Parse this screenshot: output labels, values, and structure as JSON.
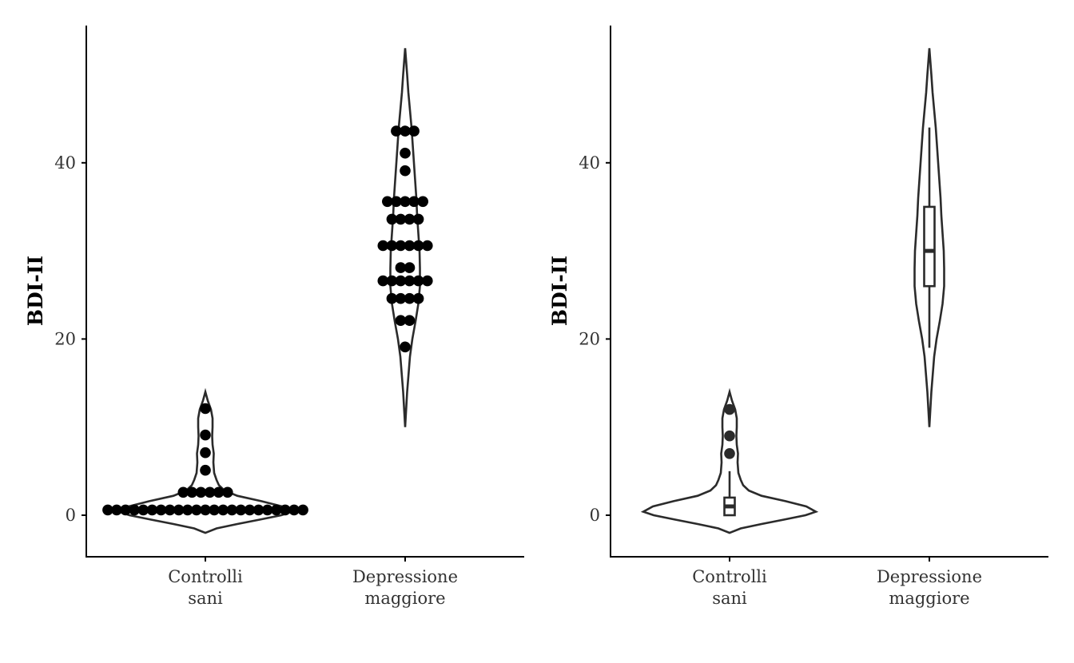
{
  "chart_data": [
    {
      "type": "violin-dotplot",
      "ylabel": "BDI-II",
      "xlabel": "",
      "ylim": [
        -4.7,
        55.5
      ],
      "yticks": [
        0,
        20,
        40
      ],
      "grid": false,
      "categories": [
        {
          "label_lines": [
            "Controlli",
            "sani"
          ]
        },
        {
          "label_lines": [
            "Depressione",
            "maggiore"
          ]
        }
      ],
      "violins": [
        {
          "category": 0,
          "profile": [
            [
              -2,
              0
            ],
            [
              -1.5,
              14
            ],
            [
              -1,
              40
            ],
            [
              -0.5,
              68
            ],
            [
              0,
              95
            ],
            [
              0.4,
              108
            ],
            [
              1,
              96
            ],
            [
              1.6,
              70
            ],
            [
              2.2,
              40
            ],
            [
              2.8,
              24
            ],
            [
              3.4,
              17
            ],
            [
              4,
              14
            ],
            [
              4.8,
              11
            ],
            [
              6,
              10
            ],
            [
              7,
              10.5
            ],
            [
              8,
              9
            ],
            [
              9,
              8.5
            ],
            [
              10,
              9
            ],
            [
              11,
              9
            ],
            [
              12,
              7
            ],
            [
              13,
              3
            ],
            [
              14,
              0
            ]
          ]
        },
        {
          "category": 1,
          "profile": [
            [
              10,
              0
            ],
            [
              14,
              2.5
            ],
            [
              18,
              6
            ],
            [
              20,
              9
            ],
            [
              22,
              13
            ],
            [
              24,
              16.5
            ],
            [
              26,
              18.5
            ],
            [
              28,
              18.5
            ],
            [
              30,
              18
            ],
            [
              32,
              16.5
            ],
            [
              34,
              15
            ],
            [
              36,
              14
            ],
            [
              38,
              12.5
            ],
            [
              40,
              11
            ],
            [
              42,
              9.5
            ],
            [
              44,
              8
            ],
            [
              46,
              6
            ],
            [
              48,
              4
            ],
            [
              50,
              2.5
            ],
            [
              53,
              0
            ]
          ]
        }
      ],
      "dotplot": [
        {
          "category": 0,
          "rows": [
            {
              "y": 0.6,
              "count": 23
            },
            {
              "y": 2.6,
              "count": 6
            },
            {
              "y": 5.1,
              "count": 1
            },
            {
              "y": 7.1,
              "count": 1
            },
            {
              "y": 9.1,
              "count": 1
            },
            {
              "y": 12.1,
              "count": 1
            }
          ]
        },
        {
          "category": 1,
          "rows": [
            {
              "y": 19.1,
              "count": 1
            },
            {
              "y": 22.1,
              "count": 2
            },
            {
              "y": 24.6,
              "count": 4
            },
            {
              "y": 26.6,
              "count": 6
            },
            {
              "y": 28.1,
              "count": 2
            },
            {
              "y": 30.6,
              "count": 6
            },
            {
              "y": 33.6,
              "count": 4
            },
            {
              "y": 35.6,
              "count": 5
            },
            {
              "y": 39.1,
              "count": 1
            },
            {
              "y": 41.1,
              "count": 1
            },
            {
              "y": 43.6,
              "count": 3
            }
          ]
        }
      ]
    },
    {
      "type": "violin-boxplot",
      "ylabel": "BDI-II",
      "xlabel": "",
      "ylim": [
        -4.7,
        55.5
      ],
      "yticks": [
        0,
        20,
        40
      ],
      "grid": false,
      "categories": [
        {
          "label_lines": [
            "Controlli",
            "sani"
          ]
        },
        {
          "label_lines": [
            "Depressione",
            "maggiore"
          ]
        }
      ],
      "violins": [
        {
          "category": 0,
          "profile": [
            [
              -2,
              0
            ],
            [
              -1.5,
              14
            ],
            [
              -1,
              40
            ],
            [
              -0.5,
              68
            ],
            [
              0,
              95
            ],
            [
              0.4,
              108
            ],
            [
              1,
              96
            ],
            [
              1.6,
              70
            ],
            [
              2.2,
              40
            ],
            [
              2.8,
              24
            ],
            [
              3.4,
              17
            ],
            [
              4,
              14
            ],
            [
              4.8,
              11
            ],
            [
              6,
              10
            ],
            [
              7,
              10.5
            ],
            [
              8,
              9
            ],
            [
              9,
              8.5
            ],
            [
              10,
              9
            ],
            [
              11,
              9
            ],
            [
              12,
              7
            ],
            [
              13,
              3
            ],
            [
              14,
              0
            ]
          ]
        },
        {
          "category": 1,
          "profile": [
            [
              10,
              0
            ],
            [
              14,
              2.5
            ],
            [
              18,
              6
            ],
            [
              20,
              9
            ],
            [
              22,
              13
            ],
            [
              24,
              16.5
            ],
            [
              26,
              18.5
            ],
            [
              28,
              18.5
            ],
            [
              30,
              18
            ],
            [
              32,
              16.5
            ],
            [
              34,
              15
            ],
            [
              36,
              14
            ],
            [
              38,
              12.5
            ],
            [
              40,
              11
            ],
            [
              42,
              9.5
            ],
            [
              44,
              8
            ],
            [
              46,
              6
            ],
            [
              48,
              4
            ],
            [
              50,
              2.5
            ],
            [
              53,
              0
            ]
          ]
        }
      ],
      "boxplots": [
        {
          "category": 0,
          "min": 0,
          "q1": 0,
          "median": 1,
          "q3": 2,
          "max": 5,
          "outliers": [
            7,
            9,
            12
          ]
        },
        {
          "category": 1,
          "min": 19,
          "q1": 26,
          "median": 30,
          "q3": 35,
          "max": 44,
          "outliers": []
        }
      ]
    }
  ]
}
